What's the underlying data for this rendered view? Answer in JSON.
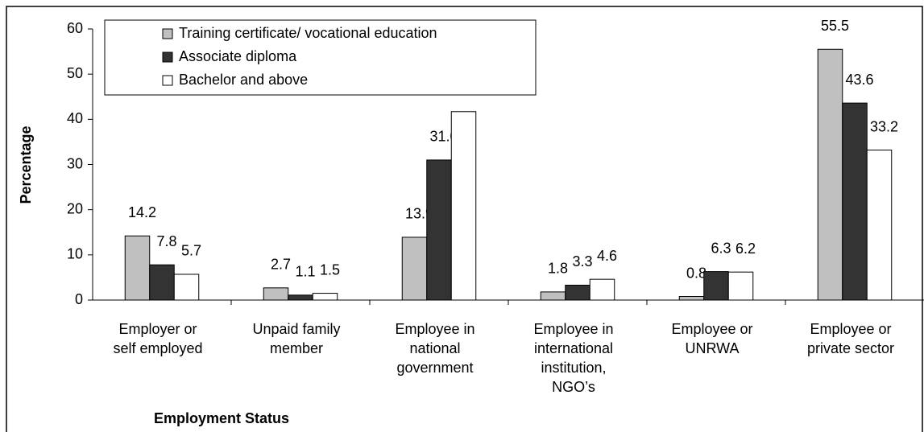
{
  "chart_data": {
    "type": "bar",
    "x_label": "Employment Status",
    "y_label": "Percentage",
    "categories": [
      "Employer or\nself employed",
      "Unpaid family\nmember",
      "Employee in\nnational\ngovernment",
      "Employee in\ninternational\ninstitution,\nNGO’s",
      "Employee or\nUNRWA",
      "Employee or\nprivate sector"
    ],
    "series": [
      {
        "name": "Training certificate/ vocational education",
        "color": "#c0c0c0",
        "values": [
          14.2,
          2.7,
          13.9,
          1.8,
          0.8,
          55.5
        ],
        "value_labels": [
          "14.2",
          "2.7",
          "13.9",
          "1.8",
          "0.8",
          "55.5"
        ]
      },
      {
        "name": "Associate diploma",
        "color": "#333333",
        "values": [
          7.8,
          1.1,
          31.0,
          3.3,
          6.3,
          43.6
        ],
        "value_labels": [
          "7.8",
          "1.1",
          "31.0",
          "3.3",
          "6.3",
          "43.6"
        ]
      },
      {
        "name": "Bachelor and above",
        "color": "#ffffff",
        "values": [
          5.7,
          1.5,
          41.7,
          4.6,
          6.2,
          33.2
        ],
        "value_labels": [
          "5.7",
          "1.5",
          "41.7",
          "4.6",
          "6.2",
          "33.2"
        ]
      }
    ],
    "ylim": [
      0,
      60
    ],
    "yticks": [
      0,
      10,
      20,
      30,
      40,
      50,
      60
    ],
    "grid": false,
    "legend": "top-left"
  }
}
